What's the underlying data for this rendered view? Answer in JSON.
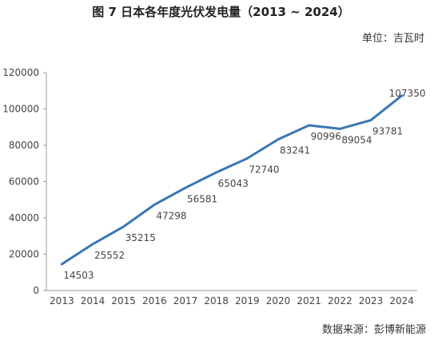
{
  "header": {
    "title": "图 7 日本各年度光伏发电量（2013 ~ 2024）",
    "unit": "单位：吉瓦时"
  },
  "footer": {
    "source": "数据来源：彭博新能源"
  },
  "chart_data": {
    "type": "line",
    "title": "图 7 日本各年度光伏发电量（2013 ~ 2024）",
    "xlabel": "",
    "ylabel": "",
    "unit": "单位：吉瓦时",
    "categories": [
      "2013",
      "2014",
      "2015",
      "2016",
      "2017",
      "2018",
      "2019",
      "2020",
      "2021",
      "2022",
      "2023",
      "2024"
    ],
    "series": [
      {
        "values": [
          14503,
          25552,
          35215,
          47298,
          56581,
          65043,
          72740,
          83241,
          90996,
          89054,
          93781,
          107350
        ]
      }
    ],
    "ylim": [
      0,
      120000
    ],
    "yticks": [
      0,
      20000,
      40000,
      60000,
      80000,
      100000,
      120000
    ],
    "grid": false,
    "legend": "none",
    "line_color": "#3a77b3",
    "data_labels": [
      "14503",
      "25552",
      "35215",
      "47298",
      "56581",
      "65043",
      "72740",
      "83241",
      "90996",
      "89054",
      "93781",
      "107350"
    ]
  }
}
